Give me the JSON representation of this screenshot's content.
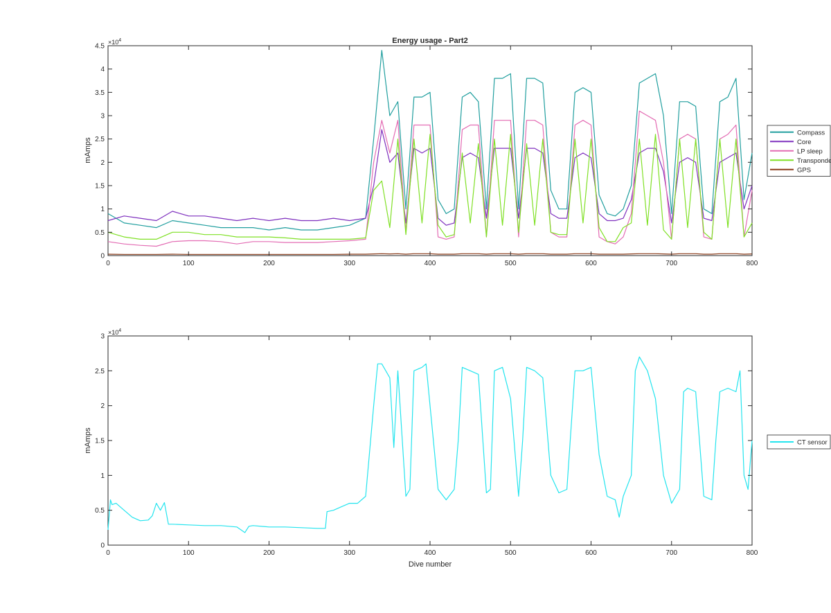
{
  "chart_data": [
    {
      "type": "line",
      "title": "Energy usage - Part2",
      "xlabel": "",
      "ylabel": "mAmps",
      "xlim": [
        0,
        800
      ],
      "ylim": [
        0,
        45000
      ],
      "scale_exponent": "×10",
      "scale_power": "4",
      "x_ticks": [
        0,
        100,
        200,
        300,
        400,
        500,
        600,
        700,
        800
      ],
      "x_tick_labels": [
        "0",
        "100",
        "200",
        "300",
        "400",
        "500",
        "600",
        "700",
        "800"
      ],
      "y_ticks": [
        0,
        5000,
        10000,
        15000,
        20000,
        25000,
        30000,
        35000,
        40000,
        45000
      ],
      "y_tick_labels": [
        "0",
        "0.5",
        "1",
        "1.5",
        "2",
        "2.5",
        "3",
        "3.5",
        "4",
        "4.5"
      ],
      "legend_position": "outside-right",
      "grid": false,
      "x": [
        0,
        20,
        40,
        60,
        80,
        100,
        120,
        140,
        160,
        180,
        200,
        220,
        240,
        260,
        280,
        300,
        320,
        330,
        340,
        350,
        360,
        370,
        380,
        390,
        400,
        410,
        420,
        430,
        440,
        450,
        460,
        470,
        480,
        490,
        500,
        510,
        520,
        530,
        540,
        550,
        560,
        570,
        580,
        590,
        600,
        610,
        620,
        630,
        640,
        650,
        660,
        670,
        680,
        690,
        700,
        710,
        720,
        730,
        740,
        750,
        760,
        770,
        780,
        790,
        800
      ],
      "series": [
        {
          "name": "Compass",
          "color": "#1f9e9e",
          "values": [
            9000,
            7000,
            6500,
            6000,
            7500,
            7000,
            6500,
            6000,
            6000,
            6000,
            5500,
            6000,
            5500,
            5500,
            6000,
            6500,
            8000,
            25000,
            44000,
            30000,
            33000,
            10000,
            34000,
            34000,
            35000,
            12000,
            9000,
            10000,
            34000,
            35000,
            33000,
            10000,
            38000,
            38000,
            39000,
            10000,
            38000,
            38000,
            37000,
            14000,
            10000,
            10000,
            35000,
            36000,
            35000,
            13000,
            9000,
            8500,
            10000,
            15000,
            37000,
            38000,
            39000,
            30000,
            9000,
            33000,
            33000,
            32000,
            10000,
            9000,
            33000,
            34000,
            38000,
            12000,
            22000
          ]
        },
        {
          "name": "Core",
          "color": "#7e2fbe",
          "values": [
            7500,
            8500,
            8000,
            7500,
            9500,
            8500,
            8500,
            8000,
            7500,
            8000,
            7500,
            8000,
            7500,
            7500,
            8000,
            7500,
            8000,
            15000,
            27000,
            20000,
            22000,
            7000,
            23000,
            22000,
            23000,
            8000,
            6500,
            7000,
            21000,
            22000,
            21000,
            8000,
            23000,
            23000,
            23000,
            8000,
            23000,
            23000,
            22000,
            9000,
            8000,
            8000,
            21000,
            22000,
            21000,
            9000,
            7500,
            7500,
            8000,
            12000,
            22000,
            23000,
            23000,
            18000,
            7000,
            20000,
            21000,
            20000,
            8000,
            7500,
            20000,
            21000,
            22000,
            10000,
            15000
          ]
        },
        {
          "name": "LP sleep",
          "color": "#e36bb3",
          "values": [
            3000,
            2500,
            2200,
            2000,
            3000,
            3200,
            3200,
            3000,
            2500,
            3000,
            3000,
            2800,
            2800,
            2800,
            3000,
            3200,
            3500,
            20000,
            29000,
            22000,
            29000,
            5000,
            28000,
            28000,
            28000,
            4000,
            3500,
            4000,
            27000,
            28000,
            28000,
            4000,
            29000,
            29000,
            29000,
            4000,
            29000,
            29000,
            28000,
            5000,
            4000,
            4000,
            28000,
            29000,
            28000,
            4000,
            3000,
            2500,
            4000,
            9000,
            31000,
            30000,
            29000,
            20000,
            3500,
            25000,
            26000,
            25000,
            4000,
            3500,
            25000,
            26000,
            28000,
            4000,
            14000
          ]
        },
        {
          "name": "Transponder",
          "color": "#7fe024",
          "values": [
            5000,
            4000,
            3500,
            3500,
            5000,
            5000,
            4500,
            4500,
            4000,
            4000,
            4000,
            3800,
            3500,
            3500,
            3500,
            3500,
            3800,
            14000,
            16000,
            6000,
            25000,
            4500,
            25000,
            7000,
            26000,
            6500,
            4000,
            4500,
            22000,
            7000,
            24000,
            4000,
            25000,
            6500,
            26000,
            5000,
            24000,
            6500,
            25000,
            5000,
            4500,
            4500,
            25000,
            7000,
            25000,
            6000,
            3000,
            3000,
            6000,
            7000,
            25000,
            6500,
            26000,
            5500,
            3500,
            25000,
            6000,
            25000,
            5000,
            3500,
            25000,
            6000,
            25000,
            4000,
            7000
          ]
        },
        {
          "name": "GPS",
          "color": "#8a3a18",
          "values": [
            300,
            250,
            250,
            250,
            300,
            250,
            250,
            250,
            250,
            250,
            250,
            250,
            250,
            250,
            250,
            300,
            300,
            350,
            400,
            350,
            400,
            300,
            400,
            400,
            400,
            300,
            300,
            300,
            400,
            400,
            400,
            300,
            400,
            400,
            400,
            300,
            400,
            400,
            400,
            300,
            300,
            300,
            400,
            400,
            400,
            300,
            300,
            300,
            300,
            350,
            400,
            400,
            400,
            350,
            300,
            400,
            400,
            400,
            300,
            300,
            400,
            400,
            400,
            300,
            350
          ]
        }
      ]
    },
    {
      "type": "line",
      "title": "",
      "xlabel": "Dive number",
      "ylabel": "mAmps",
      "xlim": [
        0,
        800
      ],
      "ylim": [
        0,
        30000
      ],
      "scale_exponent": "×10",
      "scale_power": "4",
      "x_ticks": [
        0,
        100,
        200,
        300,
        400,
        500,
        600,
        700,
        800
      ],
      "x_tick_labels": [
        "0",
        "100",
        "200",
        "300",
        "400",
        "500",
        "600",
        "700",
        "800"
      ],
      "y_ticks": [
        0,
        5000,
        10000,
        15000,
        20000,
        25000,
        30000
      ],
      "y_tick_labels": [
        "0",
        "0.5",
        "1",
        "1.5",
        "2",
        "2.5",
        "3"
      ],
      "legend_position": "outside-right",
      "grid": false,
      "x": [
        0,
        3,
        5,
        10,
        20,
        30,
        40,
        50,
        55,
        60,
        65,
        70,
        75,
        80,
        100,
        120,
        140,
        160,
        170,
        175,
        180,
        200,
        220,
        240,
        260,
        270,
        272,
        280,
        290,
        300,
        310,
        320,
        330,
        335,
        340,
        350,
        355,
        360,
        370,
        375,
        380,
        390,
        395,
        400,
        410,
        420,
        430,
        435,
        440,
        450,
        460,
        470,
        475,
        480,
        490,
        500,
        510,
        515,
        520,
        530,
        540,
        550,
        560,
        570,
        580,
        590,
        600,
        610,
        620,
        630,
        635,
        640,
        650,
        655,
        660,
        670,
        680,
        690,
        700,
        710,
        715,
        720,
        730,
        740,
        750,
        755,
        760,
        770,
        780,
        785,
        790,
        795,
        800
      ],
      "series": [
        {
          "name": "CT sensor",
          "color": "#22e4ee",
          "values": [
            2200,
            6500,
            5800,
            6000,
            5000,
            4000,
            3500,
            3600,
            4200,
            6000,
            5000,
            6100,
            3000,
            3000,
            2900,
            2800,
            2800,
            2600,
            1800,
            2700,
            2800,
            2600,
            2600,
            2500,
            2400,
            2400,
            4800,
            5000,
            5500,
            6000,
            6000,
            7000,
            20000,
            26000,
            26000,
            24000,
            14000,
            25000,
            7000,
            8000,
            25000,
            25500,
            26000,
            20000,
            8000,
            6500,
            8000,
            15000,
            25500,
            25000,
            24500,
            7500,
            8000,
            25000,
            25500,
            21000,
            7000,
            15000,
            25500,
            25000,
            24000,
            10000,
            7500,
            8000,
            25000,
            25000,
            25500,
            13000,
            7000,
            6500,
            4000,
            7000,
            10000,
            25000,
            27000,
            25000,
            21000,
            10000,
            6000,
            8000,
            22000,
            22500,
            22000,
            7000,
            6500,
            15000,
            22000,
            22500,
            22000,
            25000,
            10000,
            8000,
            15000
          ]
        }
      ]
    }
  ]
}
